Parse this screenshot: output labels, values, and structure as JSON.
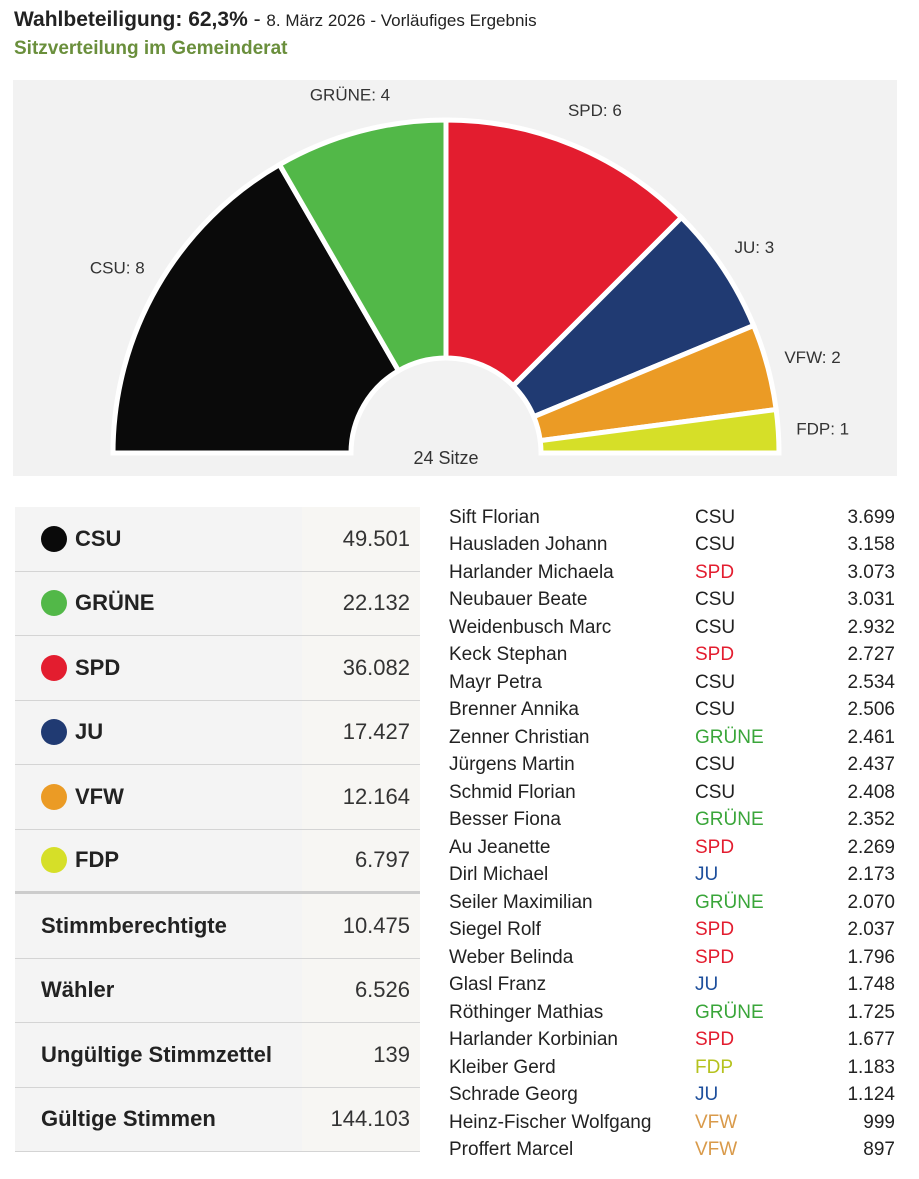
{
  "header": {
    "title": "Wahlbeteiligung: 62,3%",
    "sep": " - ",
    "subtitle": "8. März 2026 - Vorläufiges Ergebnis",
    "section": "Sitzverteilung im Gemeinderat"
  },
  "colors": {
    "CSU": "#0a0a0a",
    "GRÜNE": "#52b848",
    "SPD": "#e31d2f",
    "JU": "#203a72",
    "VFW": "#eb9b25",
    "FDP": "#d6df28"
  },
  "chart_data": {
    "type": "pie",
    "subtype": "semicircle",
    "title": "Sitzverteilung im Gemeinderat",
    "center_label": "24 Sitze",
    "total": 24,
    "slices": [
      {
        "party": "CSU",
        "seats": 8,
        "label": "CSU: 8"
      },
      {
        "party": "GRÜNE",
        "seats": 4,
        "label": "GRÜNE: 4"
      },
      {
        "party": "SPD",
        "seats": 6,
        "label": "SPD: 6"
      },
      {
        "party": "JU",
        "seats": 3,
        "label": "JU: 3"
      },
      {
        "party": "VFW",
        "seats": 2,
        "label": "VFW: 2"
      },
      {
        "party": "FDP",
        "seats": 1,
        "label": "FDP: 1"
      }
    ]
  },
  "votes": [
    {
      "party": "CSU",
      "value": "49.501"
    },
    {
      "party": "GRÜNE",
      "value": "22.132"
    },
    {
      "party": "SPD",
      "value": "36.082"
    },
    {
      "party": "JU",
      "value": "17.427"
    },
    {
      "party": "VFW",
      "value": "12.164"
    },
    {
      "party": "FDP",
      "value": "6.797"
    }
  ],
  "summary": [
    {
      "label": "Stimmberechtigte",
      "value": "10.475"
    },
    {
      "label": "Wähler",
      "value": "6.526"
    },
    {
      "label": "Ungültige Stimmzettel",
      "value": "139"
    },
    {
      "label": "Gültige Stimmen",
      "value": "144.103"
    }
  ],
  "candidates": [
    {
      "name": "Sift Florian",
      "party": "CSU",
      "votes": "3.699"
    },
    {
      "name": "Hausladen Johann",
      "party": "CSU",
      "votes": "3.158"
    },
    {
      "name": "Harlander Michaela",
      "party": "SPD",
      "votes": "3.073"
    },
    {
      "name": "Neubauer Beate",
      "party": "CSU",
      "votes": "3.031"
    },
    {
      "name": "Weidenbusch Marc",
      "party": "CSU",
      "votes": "2.932"
    },
    {
      "name": "Keck Stephan",
      "party": "SPD",
      "votes": "2.727"
    },
    {
      "name": "Mayr Petra",
      "party": "CSU",
      "votes": "2.534"
    },
    {
      "name": "Brenner Annika",
      "party": "CSU",
      "votes": "2.506"
    },
    {
      "name": "Zenner Christian",
      "party": "GRÜNE",
      "votes": "2.461"
    },
    {
      "name": "Jürgens Martin",
      "party": "CSU",
      "votes": "2.437"
    },
    {
      "name": "Schmid Florian",
      "party": "CSU",
      "votes": "2.408"
    },
    {
      "name": "Besser Fiona",
      "party": "GRÜNE",
      "votes": "2.352"
    },
    {
      "name": "Au Jeanette",
      "party": "SPD",
      "votes": "2.269"
    },
    {
      "name": "Dirl Michael",
      "party": "JU",
      "votes": "2.173"
    },
    {
      "name": "Seiler Maximilian",
      "party": "GRÜNE",
      "votes": "2.070"
    },
    {
      "name": "Siegel Rolf",
      "party": "SPD",
      "votes": "2.037"
    },
    {
      "name": "Weber Belinda",
      "party": "SPD",
      "votes": "1.796"
    },
    {
      "name": "Glasl Franz",
      "party": "JU",
      "votes": "1.748"
    },
    {
      "name": "Röthinger Mathias",
      "party": "GRÜNE",
      "votes": "1.725"
    },
    {
      "name": "Harlander Korbinian",
      "party": "SPD",
      "votes": "1.677"
    },
    {
      "name": "Kleiber Gerd",
      "party": "FDP",
      "votes": "1.183"
    },
    {
      "name": "Schrade Georg",
      "party": "JU",
      "votes": "1.124"
    },
    {
      "name": "Heinz-Fischer Wolfgang",
      "party": "VFW",
      "votes": "999"
    },
    {
      "name": "Proffert Marcel",
      "party": "VFW",
      "votes": "897"
    }
  ],
  "candidate_party_colors": {
    "CSU": "#222222",
    "SPD": "#e31d2f",
    "GRÜNE": "#3aa63a",
    "JU": "#1e4f9c",
    "FDP": "#b5c21e",
    "VFW": "#d99a4a"
  }
}
